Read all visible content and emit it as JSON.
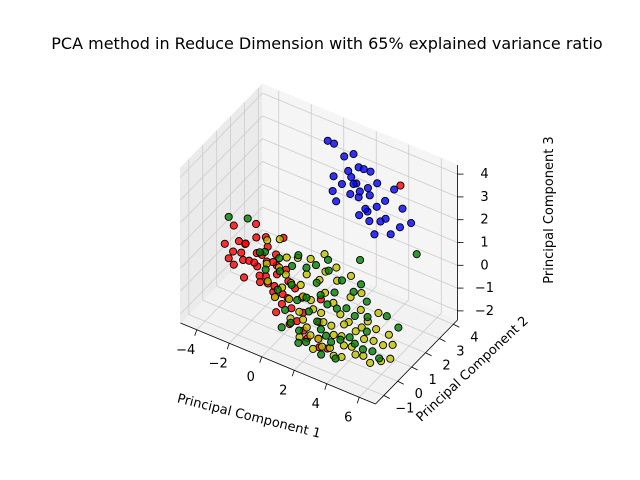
{
  "chart_data": {
    "type": "scatter",
    "projection": "3d",
    "title": "PCA method in Reduce Dimension with 65% explained variance ratio",
    "xlabel": "Principal Component 1",
    "ylabel": "Principal Component 2",
    "zlabel": "Principal Component 3",
    "xlim": [
      -5,
      7
    ],
    "ylim": [
      -1.6,
      4.3
    ],
    "zlim": [
      -2.4,
      4.4
    ],
    "x_ticks": [
      "−4",
      "−2",
      "0",
      "2",
      "4",
      "6"
    ],
    "y_ticks": [
      "−1",
      "0",
      "1",
      "2",
      "3",
      "4"
    ],
    "z_ticks": [
      "−2",
      "−1",
      "0",
      "1",
      "2",
      "3",
      "4"
    ],
    "grid": true,
    "legend": "none",
    "colors": {
      "blue": "#0000ff",
      "red": "#ff0000",
      "yellow": "#bfbf00",
      "green": "#008000",
      "edge": "#000000"
    },
    "series": [
      {
        "color": "blue",
        "points": [
          [
            -0.3,
            3.5,
            3.8
          ],
          [
            0.0,
            3.6,
            3.7
          ],
          [
            0.8,
            3.4,
            3.5
          ],
          [
            1.2,
            3.6,
            3.6
          ],
          [
            1.6,
            3.5,
            3.2
          ],
          [
            2.0,
            3.4,
            3.3
          ],
          [
            1.0,
            3.0,
            2.6
          ],
          [
            1.4,
            3.2,
            2.9
          ],
          [
            1.8,
            3.1,
            2.8
          ],
          [
            2.5,
            3.3,
            3.4
          ],
          [
            3.0,
            3.2,
            3.1
          ],
          [
            0.6,
            2.8,
            2.3
          ],
          [
            1.6,
            2.9,
            2.4
          ],
          [
            2.2,
            2.8,
            2.5
          ],
          [
            2.8,
            2.9,
            2.7
          ],
          [
            3.4,
            2.7,
            2.5
          ],
          [
            4.0,
            2.6,
            3.0
          ],
          [
            4.3,
            2.9,
            3.4
          ],
          [
            5.0,
            2.5,
            2.2
          ],
          [
            5.6,
            2.6,
            2.5
          ],
          [
            3.2,
            2.4,
            2.0
          ],
          [
            3.8,
            2.5,
            2.1
          ],
          [
            4.6,
            2.3,
            1.9
          ],
          [
            2.4,
            2.6,
            1.9
          ],
          [
            3.0,
            2.5,
            2.3
          ],
          [
            1.8,
            2.9,
            2.9
          ],
          [
            2.6,
            3.0,
            2.9
          ],
          [
            0.9,
            2.7,
            2.0
          ],
          [
            4.9,
            2.8,
            2.8
          ],
          [
            3.6,
            2.3,
            1.6
          ],
          [
            1.3,
            3.1,
            3.2
          ],
          [
            2.1,
            3.0,
            2.6
          ],
          [
            0.4,
            3.1,
            2.7
          ],
          [
            2.7,
            2.7,
            2.2
          ],
          [
            4.2,
            2.4,
            2.4
          ]
        ]
      },
      {
        "color": "red",
        "points": [
          [
            -4.5,
            1.0,
            -0.4
          ],
          [
            -3.8,
            1.2,
            -0.2
          ],
          [
            -3.2,
            0.8,
            -0.6
          ],
          [
            -3.5,
            1.3,
            -0.3
          ],
          [
            -2.7,
            1.2,
            -0.4
          ],
          [
            -3.0,
            1.0,
            -0.7
          ],
          [
            -2.2,
            1.4,
            -0.1
          ],
          [
            -2.5,
            1.0,
            -0.8
          ],
          [
            -2.0,
            1.1,
            -0.5
          ],
          [
            -1.8,
            0.8,
            -0.9
          ],
          [
            -1.5,
            0.6,
            -1.0
          ],
          [
            -1.2,
            0.9,
            -0.7
          ],
          [
            -1.0,
            0.4,
            -1.1
          ],
          [
            -0.6,
            0.6,
            -1.2
          ],
          [
            -0.3,
            0.2,
            -1.3
          ],
          [
            0.2,
            0.3,
            -1.4
          ],
          [
            0.8,
            0.0,
            -1.6
          ],
          [
            1.3,
            -0.1,
            -1.8
          ],
          [
            1.7,
            -0.3,
            -1.9
          ],
          [
            2.3,
            -0.2,
            -1.8
          ],
          [
            3.0,
            -0.4,
            -1.9
          ],
          [
            -4.2,
            1.3,
            0.3
          ],
          [
            -3.6,
            0.6,
            -0.8
          ],
          [
            -2.8,
            0.4,
            -1.0
          ],
          [
            -2.4,
            1.5,
            0.2
          ],
          [
            -1.6,
            1.3,
            -0.2
          ],
          [
            -0.9,
            1.2,
            -0.6
          ],
          [
            -3.9,
            0.9,
            -0.5
          ],
          [
            -3.3,
            1.1,
            -0.1
          ],
          [
            -2.9,
            1.4,
            0.1
          ],
          [
            -2.1,
            0.7,
            -0.9
          ],
          [
            -1.3,
            1.0,
            -0.4
          ],
          [
            -0.5,
            0.9,
            -0.8
          ],
          [
            0.5,
            0.7,
            -1.1
          ],
          [
            1.0,
            0.2,
            -1.3
          ],
          [
            1.9,
            0.3,
            -1.5
          ],
          [
            -2.6,
            0.9,
            -0.6
          ],
          [
            -1.9,
            0.5,
            -1.0
          ],
          [
            -1.1,
            0.6,
            -1.0
          ],
          [
            -0.2,
            0.5,
            -1.2
          ],
          [
            0.6,
            -0.3,
            -1.6
          ],
          [
            -4.0,
            0.7,
            -0.7
          ],
          [
            -3.4,
            0.9,
            -0.4
          ],
          [
            -2.3,
            1.1,
            -0.3
          ],
          [
            -1.7,
            1.2,
            -0.5
          ],
          [
            -0.8,
            0.3,
            -1.2
          ],
          [
            0.0,
            0.8,
            -0.9
          ],
          [
            2.6,
            -0.5,
            -1.9
          ],
          [
            -3.0,
            1.5,
            0.6
          ],
          [
            -1.4,
            1.6,
            0.4
          ],
          [
            4.6,
            3.0,
            3.6
          ],
          [
            1.5,
            0.9,
            -1.0
          ],
          [
            -0.4,
            -0.1,
            -1.5
          ]
        ]
      },
      {
        "color": "yellow",
        "points": [
          [
            -1.5,
            1.4,
            -0.8
          ],
          [
            -1.0,
            1.3,
            -0.9
          ],
          [
            -0.5,
            1.1,
            -1.0
          ],
          [
            0.0,
            1.2,
            -1.0
          ],
          [
            0.4,
            0.9,
            -1.2
          ],
          [
            0.8,
            1.0,
            -1.3
          ],
          [
            1.2,
            0.7,
            -1.4
          ],
          [
            1.6,
            0.8,
            -1.5
          ],
          [
            2.0,
            0.5,
            -1.6
          ],
          [
            2.4,
            0.6,
            -1.7
          ],
          [
            2.8,
            0.3,
            -1.8
          ],
          [
            3.2,
            0.4,
            -1.8
          ],
          [
            3.6,
            0.1,
            -1.9
          ],
          [
            4.0,
            0.2,
            -1.9
          ],
          [
            4.4,
            0.0,
            -2.0
          ],
          [
            4.8,
            0.1,
            -2.0
          ],
          [
            5.3,
            0.0,
            -2.1
          ],
          [
            5.8,
            0.2,
            -2.0
          ],
          [
            6.2,
            0.4,
            -1.9
          ],
          [
            -0.2,
            0.6,
            -1.3
          ],
          [
            0.6,
            0.4,
            -1.5
          ],
          [
            1.0,
            0.2,
            -1.6
          ],
          [
            1.4,
            0.0,
            -1.7
          ],
          [
            1.8,
            -0.2,
            -1.8
          ],
          [
            2.2,
            -0.1,
            -1.9
          ],
          [
            2.6,
            -0.3,
            -2.0
          ],
          [
            3.0,
            -0.2,
            -2.0
          ],
          [
            3.4,
            -0.4,
            -2.1
          ],
          [
            3.8,
            -0.3,
            -2.1
          ],
          [
            -0.8,
            0.8,
            -1.1
          ],
          [
            0.2,
            1.4,
            -0.6
          ],
          [
            0.9,
            1.5,
            -0.7
          ],
          [
            1.5,
            1.2,
            -0.9
          ],
          [
            2.1,
            1.1,
            -1.1
          ],
          [
            2.7,
            0.9,
            -1.3
          ],
          [
            3.3,
            0.8,
            -1.4
          ],
          [
            3.9,
            0.6,
            -1.5
          ],
          [
            4.5,
            0.5,
            -1.6
          ],
          [
            5.0,
            0.6,
            -1.6
          ],
          [
            5.5,
            0.7,
            -1.7
          ],
          [
            -2.0,
            1.1,
            -0.6
          ],
          [
            -1.2,
            1.6,
            -0.4
          ],
          [
            -0.6,
            1.7,
            -0.3
          ],
          [
            0.1,
            1.8,
            -0.2
          ],
          [
            1.1,
            1.7,
            -0.4
          ],
          [
            1.9,
            1.6,
            -0.5
          ],
          [
            2.9,
            1.4,
            -0.8
          ],
          [
            3.7,
            1.2,
            -1.0
          ],
          [
            4.3,
            1.0,
            -1.2
          ],
          [
            -1.6,
            0.7,
            -1.0
          ],
          [
            -0.9,
            0.4,
            -1.3
          ],
          [
            0.4,
            0.0,
            -1.6
          ],
          [
            1.3,
            -0.4,
            -1.9
          ],
          [
            2.3,
            -0.6,
            -2.0
          ],
          [
            3.1,
            0.7,
            -1.5
          ],
          [
            4.1,
            0.8,
            -1.4
          ],
          [
            4.9,
            0.9,
            -1.3
          ],
          [
            5.6,
            1.0,
            -1.4
          ],
          [
            6.0,
            0.8,
            -1.6
          ],
          [
            -2.4,
            1.6,
            0.0
          ],
          [
            -1.8,
            1.8,
            0.1
          ],
          [
            1.6,
            1.9,
            -0.2
          ],
          [
            2.5,
            1.9,
            -0.3
          ],
          [
            0.7,
            2.1,
            0.0
          ],
          [
            3.4,
            1.6,
            -0.6
          ],
          [
            4.7,
            1.3,
            -0.9
          ]
        ]
      },
      {
        "color": "green",
        "points": [
          [
            -4.6,
            1.4,
            0.5
          ],
          [
            -3.6,
            1.6,
            0.6
          ],
          [
            -1.1,
            1.0,
            -0.6
          ],
          [
            -0.3,
            0.9,
            -0.9
          ],
          [
            0.3,
            0.6,
            -1.2
          ],
          [
            0.7,
            0.8,
            -1.1
          ],
          [
            1.1,
            0.5,
            -1.4
          ],
          [
            1.7,
            0.4,
            -1.6
          ],
          [
            2.1,
            0.2,
            -1.7
          ],
          [
            2.5,
            0.1,
            -1.8
          ],
          [
            2.9,
            0.0,
            -1.9
          ],
          [
            3.3,
            0.2,
            -1.8
          ],
          [
            3.7,
            0.4,
            -1.7
          ],
          [
            4.1,
            0.3,
            -1.8
          ],
          [
            4.6,
            0.3,
            -1.9
          ],
          [
            5.1,
            0.4,
            -1.9
          ],
          [
            5.6,
            0.3,
            -2.0
          ],
          [
            -0.7,
            1.4,
            -0.5
          ],
          [
            0.1,
            1.5,
            -0.4
          ],
          [
            0.9,
            1.3,
            -0.7
          ],
          [
            1.4,
            1.0,
            -0.9
          ],
          [
            1.9,
            0.9,
            -1.1
          ],
          [
            2.4,
            1.0,
            -1.2
          ],
          [
            2.9,
            1.1,
            -1.1
          ],
          [
            3.5,
            1.0,
            -1.2
          ],
          [
            4.2,
            1.1,
            -1.1
          ],
          [
            -0.1,
            0.2,
            -1.5
          ],
          [
            0.5,
            -0.1,
            -1.7
          ],
          [
            1.1,
            -0.2,
            -1.8
          ],
          [
            1.7,
            -0.4,
            -2.0
          ],
          [
            2.8,
            -0.6,
            -2.1
          ],
          [
            3.6,
            -0.5,
            -2.1
          ],
          [
            -2.2,
            1.2,
            -0.2
          ],
          [
            -1.4,
            1.3,
            -0.3
          ],
          [
            -0.4,
            1.5,
            0.0
          ],
          [
            0.6,
            1.6,
            -0.2
          ],
          [
            1.3,
            1.7,
            -0.3
          ],
          [
            2.2,
            1.6,
            -0.4
          ],
          [
            3.0,
            1.5,
            -0.6
          ],
          [
            3.9,
            1.4,
            -0.7
          ],
          [
            5.3,
            1.2,
            -0.8
          ],
          [
            6.1,
            1.1,
            -1.0
          ],
          [
            -1.9,
            0.9,
            -0.7
          ],
          [
            -0.9,
            0.6,
            -1.1
          ],
          [
            0.2,
            -0.4,
            -1.8
          ],
          [
            1.4,
            -0.6,
            -2.0
          ],
          [
            2.0,
            1.3,
            -0.8
          ],
          [
            4.5,
            0.7,
            -1.4
          ],
          [
            2.8,
            2.2,
            0.3
          ],
          [
            6.2,
            2.3,
            1.5
          ],
          [
            -2.6,
            1.3,
            -0.4
          ],
          [
            1.0,
            2.0,
            -0.1
          ],
          [
            3.2,
            1.8,
            -0.4
          ]
        ]
      }
    ]
  }
}
